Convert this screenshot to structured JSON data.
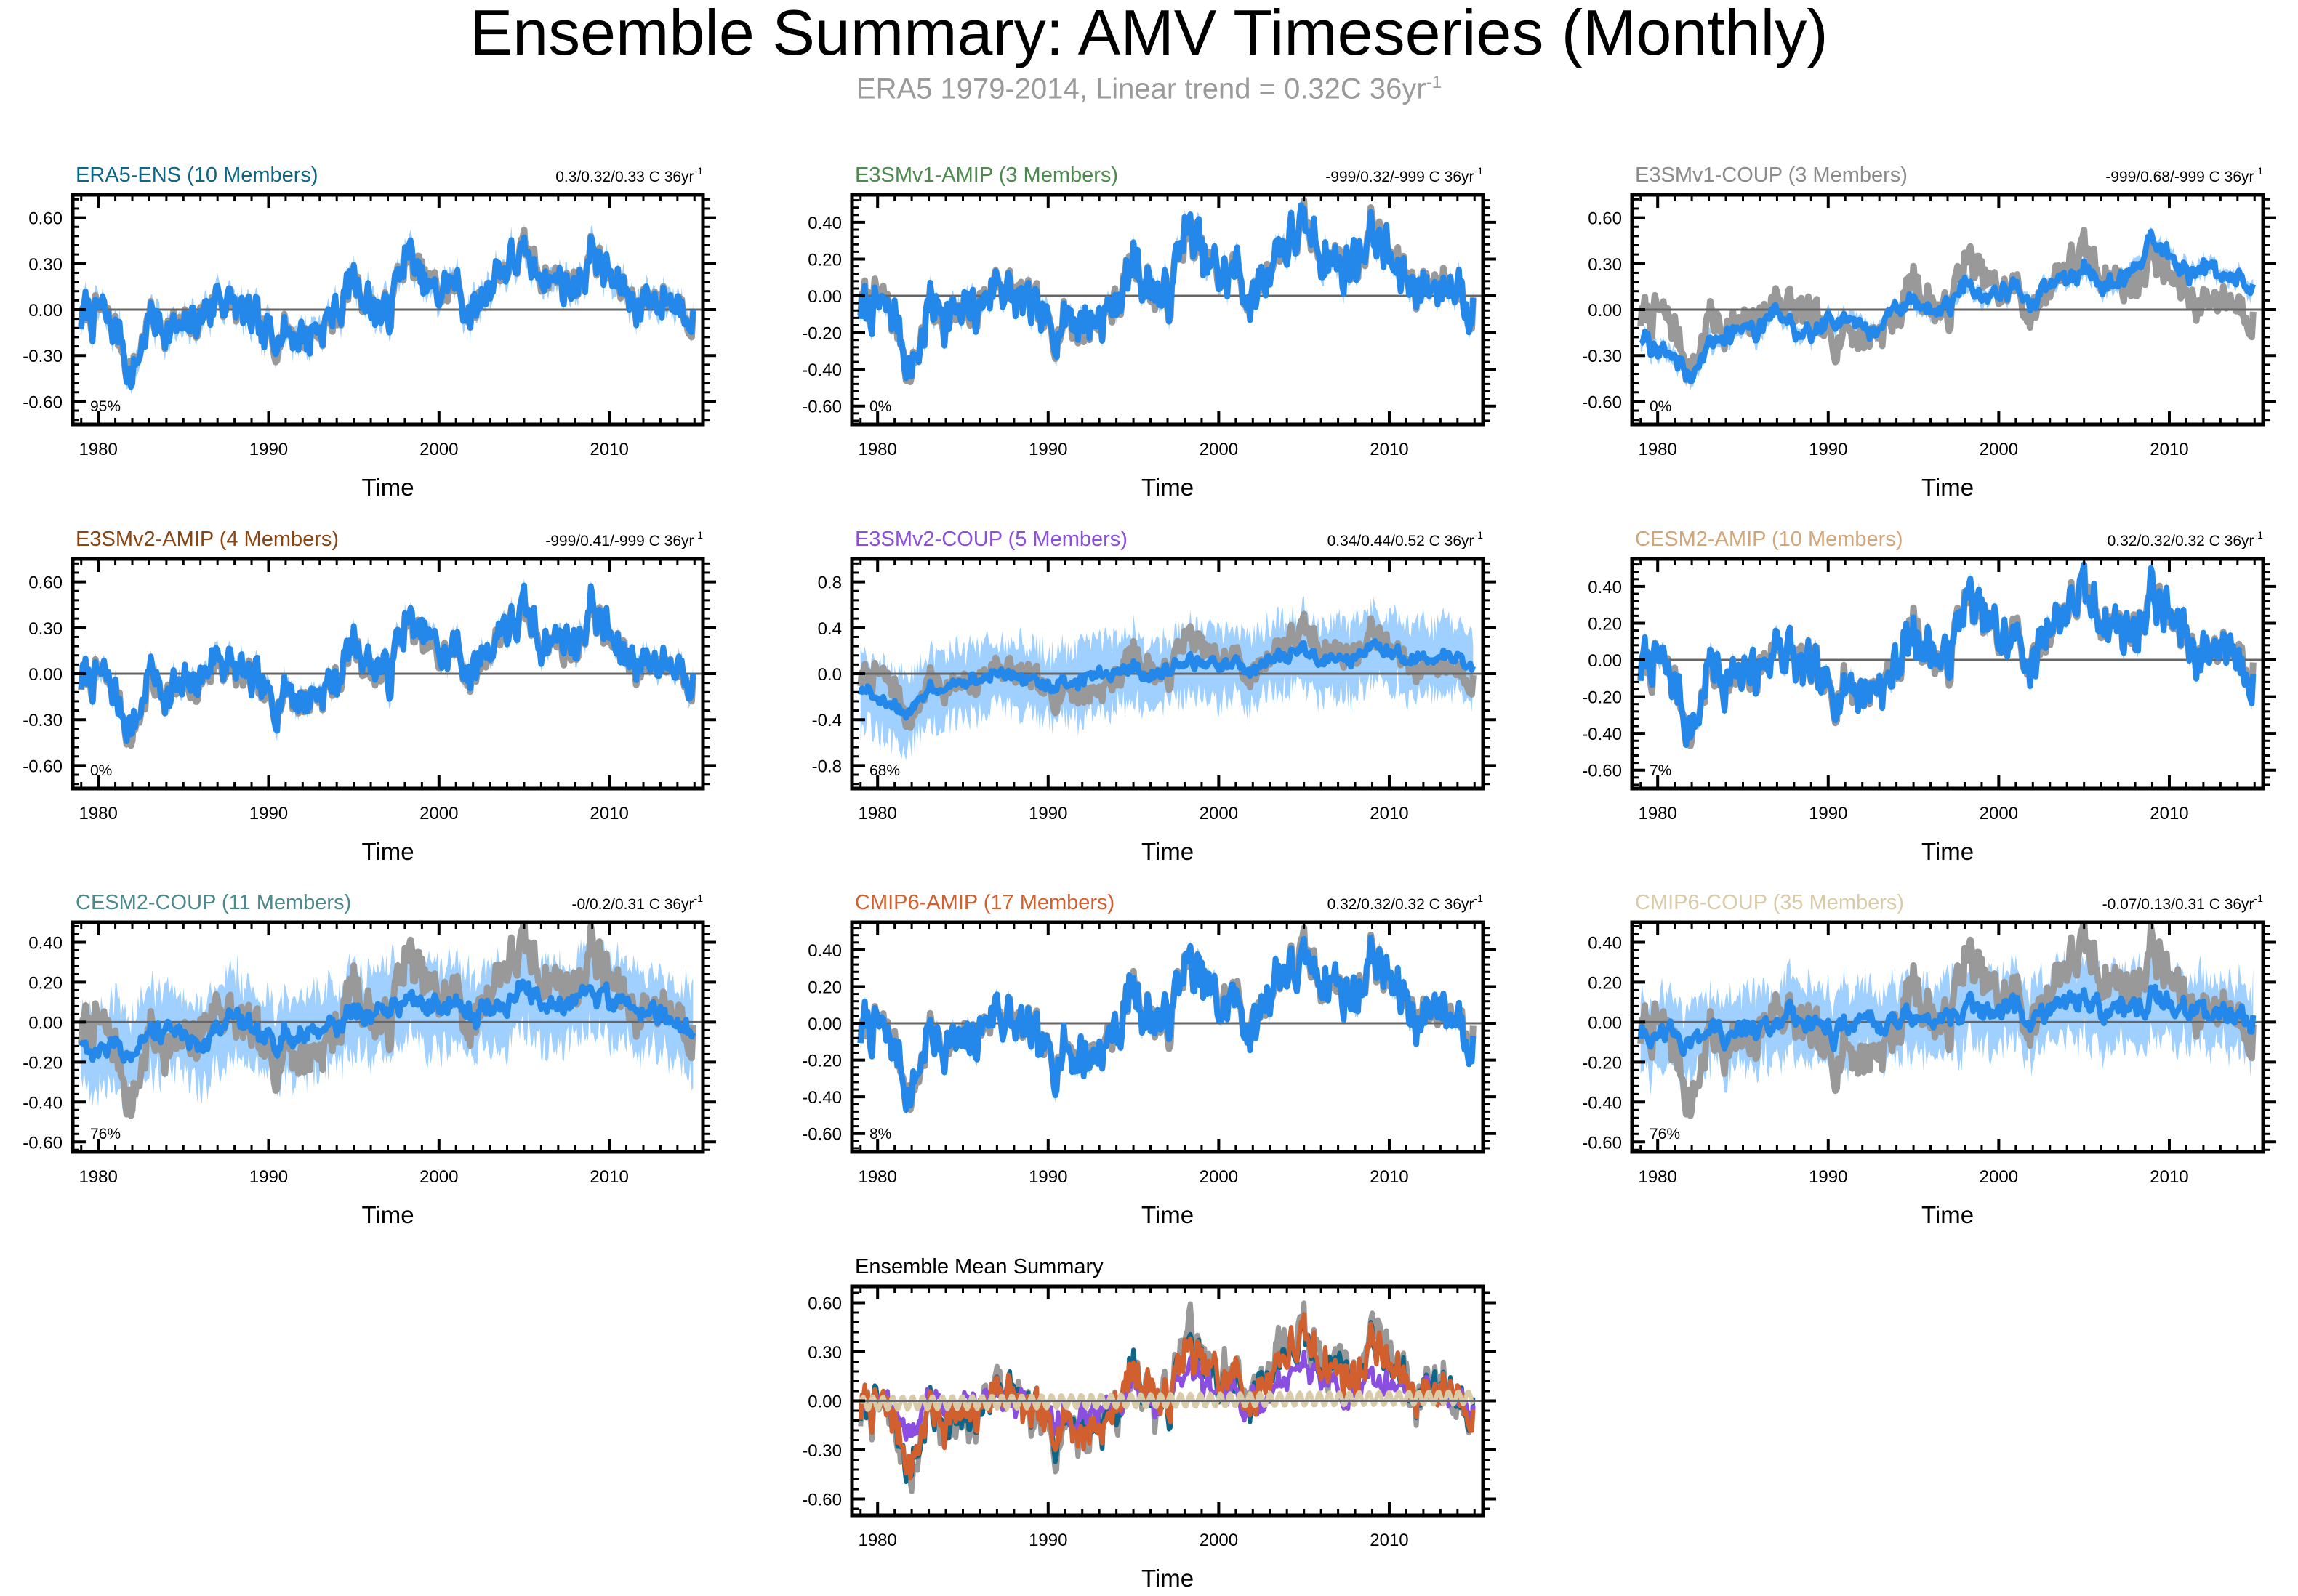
{
  "figure": {
    "title": "Ensemble Summary: AMV Timeseries (Monthly)",
    "subtitle_main": "ERA5 1979-2014, Linear trend = 0.32C 36yr",
    "subtitle_sup": "-1"
  },
  "colors": {
    "obs": "#999999",
    "ens_mean": "#2388ea",
    "spread": "#9fd0ff",
    "zero": "#666666"
  },
  "chart_data": [
    {
      "type": "line",
      "title": "ERA5-ENS (10 Members)",
      "title_color": "#0d6687",
      "stat": "0.3/0.32/0.33 C 36yr",
      "stat_sup": "-1",
      "pct": "95%",
      "xlabel": "Time",
      "ylim": [
        -0.75,
        0.75
      ],
      "yticks": [
        -0.6,
        -0.3,
        0,
        0.3,
        0.6
      ],
      "ytick_labels": [
        "-0.60",
        "-0.30",
        "0.00",
        "0.30",
        "0.60"
      ],
      "xlim": [
        1978.5,
        2015.5
      ],
      "xticks": [
        1980,
        1990,
        2000,
        2010
      ],
      "xtick_labels": [
        "1980",
        "1990",
        "2000",
        "2010"
      ],
      "spread": 0.07,
      "mean_follow": 1.0,
      "mean_offset": 0.0,
      "anom": [
        -0.15,
        -0.05,
        -0.02,
        -0.12,
        -0.42,
        -0.05,
        -0.1,
        -0.15,
        -0.05,
        0.1,
        0.0,
        -0.08,
        -0.2,
        -0.1,
        -0.18,
        -0.12,
        -0.05,
        0.2,
        0.05,
        -0.05,
        0.35,
        0.2,
        0.1,
        0.15,
        -0.05,
        0.2,
        0.3,
        0.35,
        0.25,
        0.2,
        0.15,
        0.4,
        0.2,
        0.1,
        0.05,
        0.1,
        0.05,
        0.0
      ]
    },
    {
      "type": "line",
      "title": "E3SMv1-AMIP (3 Members)",
      "title_color": "#4d8a4d",
      "stat": "-999/0.32/-999 C 36yr",
      "stat_sup": "-1",
      "pct": "0%",
      "xlabel": "Time",
      "ylim": [
        -0.7,
        0.55
      ],
      "yticks": [
        -0.6,
        -0.4,
        -0.2,
        0,
        0.2,
        0.4
      ],
      "ytick_labels": [
        "-0.60",
        "-0.40",
        "-0.20",
        "0.00",
        "0.20",
        "0.40"
      ],
      "xlim": [
        1978.5,
        2015.5
      ],
      "xticks": [
        1980,
        1990,
        2000,
        2010
      ],
      "xtick_labels": [
        "1980",
        "1990",
        "2000",
        "2010"
      ],
      "spread": 0.04,
      "mean_follow": 1.0,
      "mean_offset": 0.0,
      "anom": [
        -0.15,
        -0.05,
        -0.02,
        -0.12,
        -0.42,
        -0.05,
        -0.1,
        -0.15,
        -0.05,
        0.1,
        0.0,
        -0.08,
        -0.2,
        -0.1,
        -0.18,
        -0.12,
        -0.05,
        0.2,
        0.05,
        -0.05,
        0.35,
        0.2,
        0.1,
        0.15,
        -0.05,
        0.2,
        0.3,
        0.35,
        0.25,
        0.2,
        0.15,
        0.4,
        0.2,
        0.1,
        0.05,
        0.1,
        0.05,
        0.0
      ]
    },
    {
      "type": "line",
      "title": "E3SMv1-COUP (3 Members)",
      "title_color": "#8a8a8a",
      "stat": "-999/0.68/-999 C 36yr",
      "stat_sup": "-1",
      "pct": "0%",
      "xlabel": "Time",
      "ylim": [
        -0.75,
        0.75
      ],
      "yticks": [
        -0.6,
        -0.3,
        0,
        0.3,
        0.6
      ],
      "ytick_labels": [
        "-0.60",
        "-0.30",
        "0.00",
        "0.30",
        "0.60"
      ],
      "xlim": [
        1978.5,
        2015.5
      ],
      "xticks": [
        1980,
        1990,
        2000,
        2010
      ],
      "xtick_labels": [
        "1980",
        "1990",
        "2000",
        "2010"
      ],
      "spread": 0.05,
      "mean_follow": 0.3,
      "mean_offset": 0.0,
      "mean_anom": [
        -0.2,
        -0.25,
        -0.4,
        -0.35,
        -0.45,
        -0.3,
        -0.2,
        -0.15,
        -0.1,
        -0.05,
        -0.15,
        -0.2,
        -0.05,
        0.0,
        -0.1,
        -0.15,
        0.05,
        0.0,
        -0.05,
        0.05,
        0.1,
        0.0,
        0.1,
        0.15,
        0.05,
        0.2,
        0.15,
        0.25,
        0.1,
        0.2,
        0.3,
        0.5,
        0.4,
        0.3,
        0.35,
        0.3,
        0.3,
        0.25
      ],
      "anom": [
        -0.15,
        -0.05,
        -0.02,
        -0.12,
        -0.42,
        -0.05,
        -0.1,
        -0.15,
        -0.05,
        0.1,
        0.0,
        -0.08,
        -0.2,
        -0.1,
        -0.18,
        -0.12,
        -0.05,
        0.2,
        0.05,
        -0.05,
        0.35,
        0.2,
        0.1,
        0.15,
        -0.05,
        0.2,
        0.3,
        0.35,
        0.25,
        0.2,
        0.15,
        0.4,
        0.2,
        0.1,
        0.05,
        0.1,
        0.05,
        0.0
      ]
    },
    {
      "type": "line",
      "title": "E3SMv2-AMIP (4 Members)",
      "title_color": "#8b4513",
      "stat": "-999/0.41/-999 C 36yr",
      "stat_sup": "-1",
      "pct": "0%",
      "xlabel": "Time",
      "ylim": [
        -0.75,
        0.75
      ],
      "yticks": [
        -0.6,
        -0.3,
        0,
        0.3,
        0.6
      ],
      "ytick_labels": [
        "-0.60",
        "-0.30",
        "0.00",
        "0.30",
        "0.60"
      ],
      "xlim": [
        1978.5,
        2015.5
      ],
      "xticks": [
        1980,
        1990,
        2000,
        2010
      ],
      "xtick_labels": [
        "1980",
        "1990",
        "2000",
        "2010"
      ],
      "spread": 0.05,
      "mean_follow": 1.0,
      "mean_offset": 0.02,
      "anom": [
        -0.15,
        -0.05,
        -0.02,
        -0.12,
        -0.42,
        -0.05,
        -0.1,
        -0.15,
        -0.05,
        0.1,
        0.0,
        -0.08,
        -0.2,
        -0.1,
        -0.18,
        -0.12,
        -0.05,
        0.2,
        0.05,
        -0.05,
        0.35,
        0.2,
        0.1,
        0.15,
        -0.05,
        0.2,
        0.3,
        0.35,
        0.25,
        0.2,
        0.15,
        0.45,
        0.2,
        0.1,
        0.05,
        0.1,
        0.05,
        0.0
      ]
    },
    {
      "type": "line",
      "title": "E3SMv2-COUP (5 Members)",
      "title_color": "#8a4fe0",
      "stat": "0.34/0.44/0.52 C 36yr",
      "stat_sup": "-1",
      "pct": "68%",
      "xlabel": "Time",
      "ylim": [
        -1.0,
        1.0
      ],
      "yticks": [
        -0.8,
        -0.4,
        0,
        0.4,
        0.8
      ],
      "ytick_labels": [
        "-0.8",
        "-0.4",
        "0.0",
        "0.4",
        "0.8"
      ],
      "xlim": [
        1978.5,
        2015.5
      ],
      "xticks": [
        1980,
        1990,
        2000,
        2010
      ],
      "xtick_labels": [
        "1980",
        "1990",
        "2000",
        "2010"
      ],
      "spread": 0.3,
      "mean_follow": 0.3,
      "mean_offset": 0.0,
      "mean_anom": [
        -0.15,
        -0.2,
        -0.3,
        -0.35,
        -0.25,
        -0.2,
        -0.1,
        -0.05,
        -0.08,
        -0.02,
        0.0,
        -0.05,
        -0.1,
        -0.05,
        0.0,
        0.05,
        0.02,
        0.0,
        -0.05,
        0.02,
        0.05,
        0.0,
        0.05,
        0.1,
        0.05,
        0.08,
        0.1,
        0.12,
        0.1,
        0.05,
        0.12,
        0.2,
        0.15,
        0.1,
        0.2,
        0.15,
        0.2,
        0.15
      ],
      "anom": [
        -0.15,
        -0.05,
        -0.02,
        -0.12,
        -0.42,
        -0.05,
        -0.1,
        -0.15,
        -0.05,
        0.1,
        0.0,
        -0.08,
        -0.2,
        -0.1,
        -0.18,
        -0.12,
        -0.05,
        0.2,
        0.05,
        -0.05,
        0.35,
        0.2,
        0.1,
        0.15,
        -0.05,
        0.2,
        0.3,
        0.35,
        0.25,
        0.2,
        0.15,
        0.4,
        0.2,
        0.1,
        0.05,
        0.1,
        0.05,
        0.0
      ]
    },
    {
      "type": "line",
      "title": "CESM2-AMIP (10 Members)",
      "title_color": "#d2a679",
      "stat": "0.32/0.32/0.32 C 36yr",
      "stat_sup": "-1",
      "pct": "7%",
      "xlabel": "Time",
      "ylim": [
        -0.7,
        0.55
      ],
      "yticks": [
        -0.6,
        -0.4,
        -0.2,
        0,
        0.2,
        0.4
      ],
      "ytick_labels": [
        "-0.60",
        "-0.40",
        "-0.20",
        "0.00",
        "0.20",
        "0.40"
      ],
      "xlim": [
        1978.5,
        2015.5
      ],
      "xticks": [
        1980,
        1990,
        2000,
        2010
      ],
      "xtick_labels": [
        "1980",
        "1990",
        "2000",
        "2010"
      ],
      "spread": 0.03,
      "mean_follow": 1.0,
      "mean_offset": 0.0,
      "anom": [
        -0.15,
        -0.05,
        -0.02,
        -0.12,
        -0.42,
        -0.05,
        -0.1,
        -0.15,
        -0.05,
        0.1,
        0.0,
        -0.08,
        -0.2,
        -0.1,
        -0.18,
        -0.12,
        -0.05,
        0.2,
        0.05,
        -0.05,
        0.35,
        0.2,
        0.1,
        0.15,
        -0.05,
        0.2,
        0.3,
        0.35,
        0.25,
        0.2,
        0.15,
        0.4,
        0.2,
        0.1,
        0.05,
        0.1,
        0.05,
        0.0
      ]
    },
    {
      "type": "line",
      "title": "CESM2-COUP (11 Members)",
      "title_color": "#4a8a8a",
      "stat": "-0/0.2/0.31 C 36yr",
      "stat_sup": "-1",
      "pct": "76%",
      "xlabel": "Time",
      "ylim": [
        -0.65,
        0.5
      ],
      "yticks": [
        -0.6,
        -0.4,
        -0.2,
        0,
        0.2,
        0.4
      ],
      "ytick_labels": [
        "-0.60",
        "-0.40",
        "-0.20",
        "0.00",
        "0.20",
        "0.40"
      ],
      "xlim": [
        1978.5,
        2015.5
      ],
      "xticks": [
        1980,
        1990,
        2000,
        2010
      ],
      "xtick_labels": [
        "1980",
        "1990",
        "2000",
        "2010"
      ],
      "spread": 0.2,
      "mean_follow": 0.25,
      "mean_offset": 0.0,
      "mean_anom": [
        -0.1,
        -0.12,
        -0.15,
        -0.1,
        -0.08,
        -0.05,
        -0.02,
        -0.05,
        -0.1,
        -0.05,
        0.0,
        -0.03,
        -0.08,
        -0.05,
        0.0,
        0.02,
        0.0,
        -0.02,
        0.03,
        0.05,
        0.02,
        0.05,
        0.08,
        0.1,
        0.05,
        0.08,
        0.05,
        0.1,
        0.08,
        0.05,
        0.1,
        0.12,
        0.05,
        0.08,
        0.03,
        0.05,
        0.02,
        0.0
      ],
      "anom": [
        -0.15,
        -0.05,
        -0.02,
        -0.12,
        -0.42,
        -0.05,
        -0.1,
        -0.15,
        -0.05,
        0.1,
        0.0,
        -0.08,
        -0.2,
        -0.1,
        -0.18,
        -0.12,
        -0.05,
        0.2,
        0.05,
        -0.05,
        0.35,
        0.2,
        0.1,
        0.15,
        -0.05,
        0.2,
        0.3,
        0.35,
        0.25,
        0.2,
        0.15,
        0.4,
        0.2,
        0.1,
        0.05,
        0.1,
        0.05,
        0.0
      ]
    },
    {
      "type": "line",
      "title": "CMIP6-AMIP (17 Members)",
      "title_color": "#d2602f",
      "stat": "0.32/0.32/0.32 C 36yr",
      "stat_sup": "-1",
      "pct": "8%",
      "xlabel": "Time",
      "ylim": [
        -0.7,
        0.55
      ],
      "yticks": [
        -0.6,
        -0.4,
        -0.2,
        0,
        0.2,
        0.4
      ],
      "ytick_labels": [
        "-0.60",
        "-0.40",
        "-0.20",
        "0.00",
        "0.20",
        "0.40"
      ],
      "xlim": [
        1978.5,
        2015.5
      ],
      "xticks": [
        1980,
        1990,
        2000,
        2010
      ],
      "xtick_labels": [
        "1980",
        "1990",
        "2000",
        "2010"
      ],
      "spread": 0.03,
      "mean_follow": 1.0,
      "mean_offset": 0.0,
      "anom": [
        -0.15,
        -0.05,
        -0.02,
        -0.12,
        -0.42,
        -0.05,
        -0.1,
        -0.15,
        -0.05,
        0.1,
        0.0,
        -0.08,
        -0.2,
        -0.1,
        -0.18,
        -0.12,
        -0.05,
        0.2,
        0.05,
        -0.05,
        0.35,
        0.2,
        0.1,
        0.15,
        -0.05,
        0.2,
        0.3,
        0.35,
        0.25,
        0.2,
        0.15,
        0.4,
        0.2,
        0.1,
        0.05,
        0.1,
        0.05,
        0.0
      ]
    },
    {
      "type": "line",
      "title": "CMIP6-COUP (35 Members)",
      "title_color": "#d9cba8",
      "stat": "-0.07/0.13/0.31 C 36yr",
      "stat_sup": "-1",
      "pct": "76%",
      "xlabel": "Time",
      "ylim": [
        -0.65,
        0.5
      ],
      "yticks": [
        -0.6,
        -0.4,
        -0.2,
        0,
        0.2,
        0.4
      ],
      "ytick_labels": [
        "-0.60",
        "-0.40",
        "-0.20",
        "0.00",
        "0.20",
        "0.40"
      ],
      "xlim": [
        1978.5,
        2015.5
      ],
      "xticks": [
        1980,
        1990,
        2000,
        2010
      ],
      "xtick_labels": [
        "1980",
        "1990",
        "2000",
        "2010"
      ],
      "spread": 0.18,
      "mean_follow": 0.2,
      "mean_offset": 0.0,
      "mean_anom": [
        -0.05,
        -0.08,
        -0.06,
        -0.04,
        -0.05,
        -0.03,
        -0.02,
        -0.01,
        -0.02,
        0.0,
        0.01,
        0.0,
        -0.01,
        0.0,
        0.01,
        0.02,
        0.01,
        0.0,
        0.02,
        0.03,
        0.02,
        0.03,
        0.04,
        0.03,
        0.04,
        0.03,
        0.05,
        0.04,
        0.05,
        0.04,
        0.05,
        0.06,
        0.05,
        0.04,
        0.05,
        0.04,
        0.03,
        0.02
      ],
      "anom": [
        -0.15,
        -0.05,
        -0.02,
        -0.12,
        -0.42,
        -0.05,
        -0.1,
        -0.15,
        -0.05,
        0.1,
        0.0,
        -0.08,
        -0.2,
        -0.1,
        -0.18,
        -0.12,
        -0.05,
        0.2,
        0.05,
        -0.05,
        0.35,
        0.2,
        0.1,
        0.15,
        -0.05,
        0.2,
        0.3,
        0.35,
        0.25,
        0.2,
        0.15,
        0.4,
        0.2,
        0.1,
        0.05,
        0.1,
        0.05,
        0.0
      ]
    }
  ],
  "summary_chart": {
    "type": "line",
    "title": "Ensemble Mean Summary",
    "xlabel": "Time",
    "ylim": [
      -0.7,
      0.7
    ],
    "yticks": [
      -0.6,
      -0.3,
      0,
      0.3,
      0.6
    ],
    "ytick_labels": [
      "-0.60",
      "-0.30",
      "0.00",
      "0.30",
      "0.60"
    ],
    "xlim": [
      1978.5,
      2015.5
    ],
    "xticks": [
      1980,
      1990,
      2000,
      2010
    ],
    "xtick_labels": [
      "1980",
      "1990",
      "2000",
      "2010"
    ],
    "series": [
      {
        "name": "E3SMv1-COUP",
        "color": "#999999",
        "width": 7
      },
      {
        "name": "ERA5-ENS",
        "color": "#0d6687",
        "width": 6
      },
      {
        "name": "E3SMv2-COUP",
        "color": "#8a4fe0",
        "width": 6
      },
      {
        "name": "CMIP6-AMIP",
        "color": "#d2602f",
        "width": 6
      },
      {
        "name": "CMIP6-COUP",
        "color": "#d9cba8",
        "width": 6
      }
    ]
  }
}
